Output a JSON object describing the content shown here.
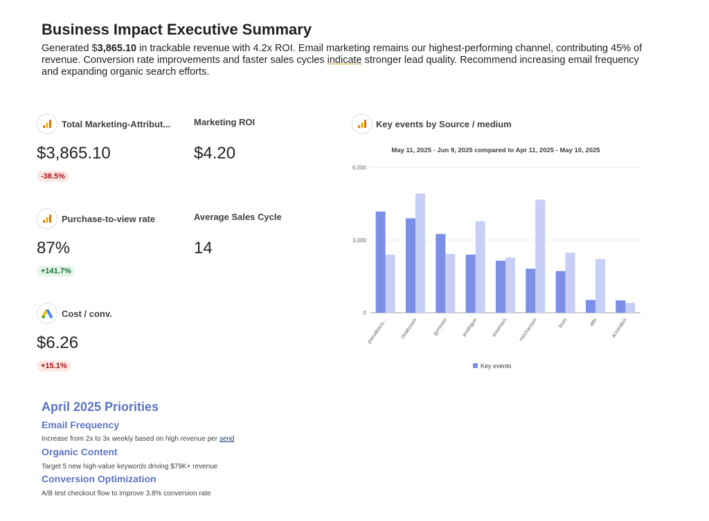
{
  "header": {
    "title": "Business Impact Executive Summary",
    "summary_prefix": "Generated $",
    "summary_bold": "3,865.10",
    "summary_mid": " in trackable revenue with 4.2x ROI. Email marketing remains our highest-performing channel, contributing 45% of revenue. Conversion rate improvements and faster sales cycles ",
    "summary_underlined": "indicate",
    "summary_suffix": " stronger lead quality. Recommend increasing email frequency and expanding organic search efforts."
  },
  "kpis": {
    "total_marketing": {
      "label": "Total Marketing-Attribut...",
      "value": "$3,865.10",
      "change": "-38.5%",
      "icon": "analytics-icon"
    },
    "roi": {
      "label": "Marketing ROI",
      "value": "$4.20"
    },
    "purchase_rate": {
      "label": "Purchase-to-view rate",
      "value": "87%",
      "change": "+141.7%",
      "icon": "analytics-icon"
    },
    "sales_cycle": {
      "label": "Average Sales Cycle",
      "value": "14"
    },
    "cost_conv": {
      "label": "Cost / conv.",
      "value": "$6.26",
      "change": "+15.1%",
      "icon": "google-ads-icon"
    }
  },
  "chart": {
    "header_label": "Key events by Source / medium",
    "subtitle": "May 11, 2025 - Jun 9, 2025 compared to Apr 11, 2025 - May 10, 2025",
    "legend_label": "Key events",
    "colors": {
      "current": "#7b8fe6",
      "previous": "#c7cff6",
      "grid": "#e8eaed",
      "axis": "#5f6368"
    }
  },
  "chart_data": {
    "type": "bar",
    "title": "",
    "categories": [
      "pseudosco...",
      "cloakroom",
      "gymnast",
      "analogue",
      "shoehorn",
      "mechanism",
      "bum",
      "alto",
      "accordion"
    ],
    "series": [
      {
        "name": "Key events",
        "values": [
          4180,
          3900,
          3250,
          2400,
          2150,
          1820,
          1720,
          530,
          510
        ]
      },
      {
        "values": [
          2400,
          4920,
          2430,
          3780,
          2280,
          4670,
          2480,
          2220,
          410
        ]
      }
    ],
    "yticks": [
      "6,000",
      "3,000",
      "0"
    ],
    "ylim": [
      0,
      6000
    ],
    "grid": true,
    "legend": "bottom"
  },
  "priorities": {
    "title": "April 2025 Priorities",
    "items": [
      {
        "heading": "Email Frequency",
        "text": "Increase from 2x to 3x weekly based on high revenue per ",
        "link": "send"
      },
      {
        "heading": "Organic Content",
        "text": "Target 5 new high-value keywords driving $79K+ revenue"
      },
      {
        "heading": "Conversion Optimization",
        "text": "A/B test checkout flow to improve 3.8% conversion rate"
      }
    ]
  }
}
